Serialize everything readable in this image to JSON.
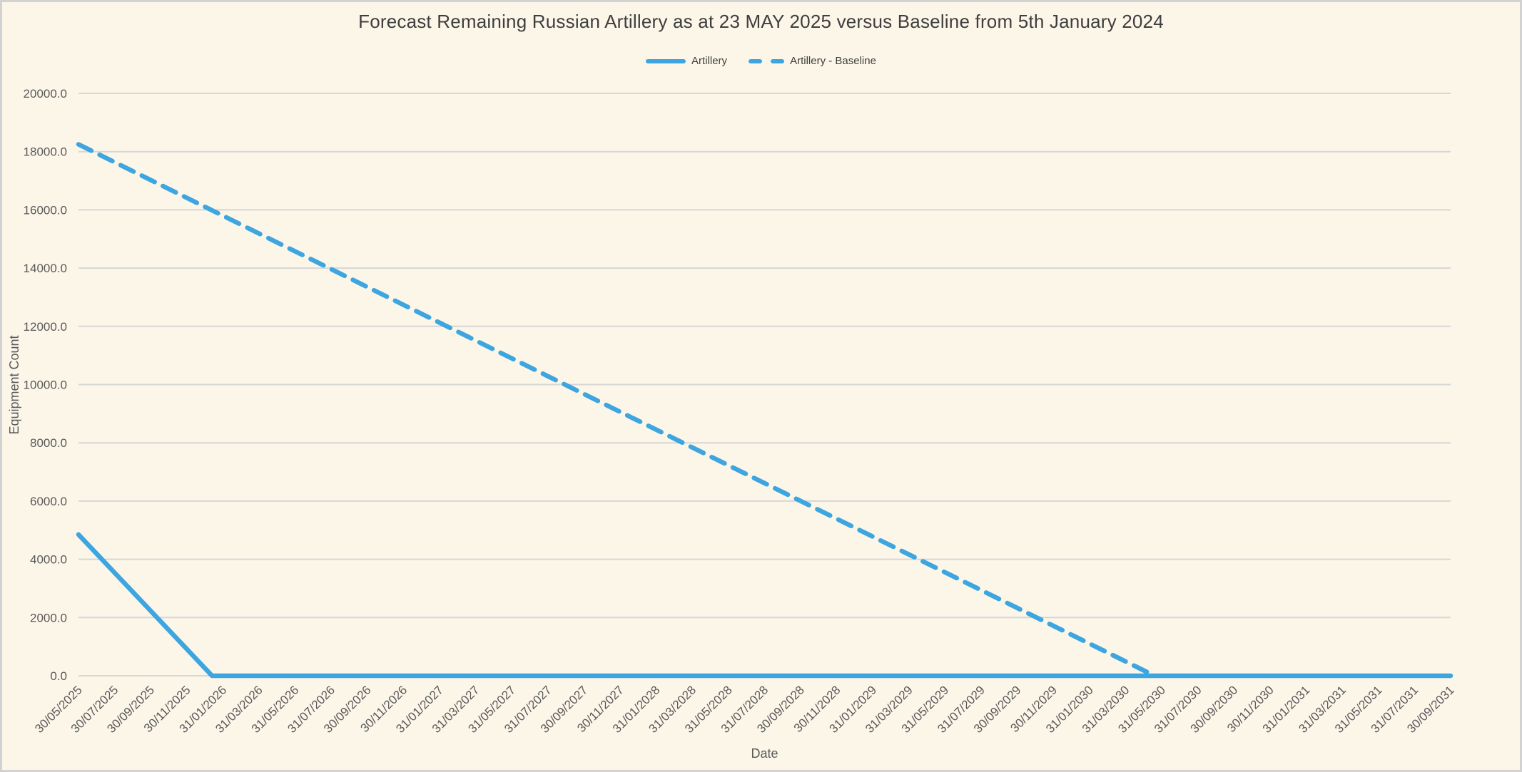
{
  "page": {
    "background_color": "#FCF6E9",
    "frame_color": "#D2D2D2"
  },
  "chart_data": {
    "type": "line",
    "title": "Forecast Remaining Russian Artillery as at 23 MAY 2025 versus Baseline from 5th January 2024",
    "xlabel": "Date",
    "ylabel": "Equipment Count",
    "ylim": [
      0,
      20000
    ],
    "ytick_step": 2000,
    "ytick_decimals": 1,
    "grid": "horizontal-only",
    "gridline_color": "#D6D6D6",
    "axis_text_color": "#595959",
    "title_color": "#3E3E3E",
    "accent_blue": "#3DA5DF",
    "legend_position": "top-center",
    "x_category_month_step": 2,
    "x_months_span": 76,
    "x_categories": [
      "30/05/2025",
      "30/07/2025",
      "30/09/2025",
      "30/11/2025",
      "31/01/2026",
      "31/03/2026",
      "31/05/2026",
      "31/07/2026",
      "30/09/2026",
      "30/11/2026",
      "31/01/2027",
      "31/03/2027",
      "31/05/2027",
      "31/07/2027",
      "30/09/2027",
      "30/11/2027",
      "31/01/2028",
      "31/03/2028",
      "31/05/2028",
      "31/07/2028",
      "30/09/2028",
      "30/11/2028",
      "31/01/2029",
      "31/03/2029",
      "31/05/2029",
      "31/07/2029",
      "30/09/2029",
      "30/11/2029",
      "31/01/2030",
      "31/03/2030",
      "31/05/2030",
      "31/07/2030",
      "30/09/2030",
      "30/11/2030",
      "31/01/2031",
      "31/03/2031",
      "31/05/2031",
      "31/07/2031",
      "30/09/2031"
    ],
    "series": [
      {
        "name": "Artillery",
        "line_style": "solid",
        "color": "#3DA5DF",
        "anchor_points_months": [
          [
            0,
            4850
          ],
          [
            7.4,
            0
          ],
          [
            76,
            0
          ]
        ],
        "values_at_categories": [
          4850,
          3540,
          2230,
          920,
          0,
          0,
          0,
          0,
          0,
          0,
          0,
          0,
          0,
          0,
          0,
          0,
          0,
          0,
          0,
          0,
          0,
          0,
          0,
          0,
          0,
          0,
          0,
          0,
          0,
          0,
          0,
          0,
          0,
          0,
          0,
          0,
          0,
          0,
          0
        ]
      },
      {
        "name": "Artillery - Baseline",
        "line_style": "dashed",
        "color": "#3DA5DF",
        "anchor_points_months": [
          [
            0,
            18250
          ],
          [
            59.6,
            0
          ]
        ],
        "values_at_categories": [
          18250,
          17640,
          17030,
          16410,
          15800,
          15190,
          14580,
          13960,
          13350,
          12740,
          12130,
          11510,
          10900,
          10290,
          9680,
          9060,
          8450,
          7840,
          7230,
          6620,
          6000,
          5390,
          4780,
          4170,
          3550,
          2940,
          2330,
          1720,
          1100,
          490,
          0,
          null,
          null,
          null,
          null,
          null,
          null,
          null,
          null
        ]
      }
    ]
  }
}
